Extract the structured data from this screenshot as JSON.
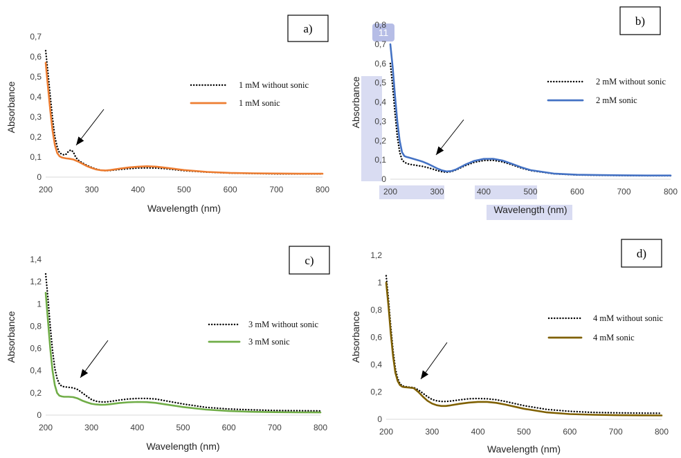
{
  "chart_data": [
    {
      "type": "line",
      "panel_label": "a)",
      "xlabel": "Wavelength (nm)",
      "ylabel": "Absorbance",
      "xlim": [
        200,
        800
      ],
      "ylim": [
        0,
        0.7
      ],
      "xticks": [
        "200",
        "300",
        "400",
        "500",
        "600",
        "700",
        "800"
      ],
      "yticks": [
        "0",
        "0,1",
        "0,2",
        "0,3",
        "0,4",
        "0,5",
        "0,6",
        "0,7"
      ],
      "legend_position": "right",
      "series": [
        {
          "name": "1 mM without  sonic",
          "style": "dotted",
          "color": "#000000",
          "x": [
            200,
            205,
            210,
            215,
            220,
            225,
            230,
            235,
            240,
            245,
            250,
            255,
            260,
            265,
            270,
            280,
            290,
            300,
            310,
            320,
            330,
            340,
            360,
            380,
            400,
            420,
            440,
            460,
            480,
            500,
            550,
            600,
            650,
            700,
            750,
            800
          ],
          "y": [
            0.63,
            0.52,
            0.4,
            0.29,
            0.2,
            0.15,
            0.12,
            0.115,
            0.11,
            0.115,
            0.13,
            0.135,
            0.125,
            0.1,
            0.085,
            0.07,
            0.058,
            0.048,
            0.04,
            0.034,
            0.032,
            0.033,
            0.038,
            0.042,
            0.045,
            0.046,
            0.045,
            0.042,
            0.037,
            0.032,
            0.025,
            0.02,
            0.018,
            0.016,
            0.016,
            0.016
          ]
        },
        {
          "name": "1 mM sonic",
          "style": "solid",
          "color": "#ED7D31",
          "x": [
            200,
            205,
            210,
            215,
            220,
            225,
            230,
            235,
            240,
            245,
            250,
            260,
            270,
            280,
            290,
            300,
            310,
            320,
            330,
            340,
            360,
            380,
            400,
            420,
            440,
            460,
            480,
            500,
            550,
            600,
            650,
            700,
            750,
            800
          ],
          "y": [
            0.57,
            0.45,
            0.33,
            0.23,
            0.16,
            0.12,
            0.104,
            0.098,
            0.095,
            0.093,
            0.092,
            0.088,
            0.078,
            0.066,
            0.054,
            0.045,
            0.038,
            0.034,
            0.033,
            0.035,
            0.042,
            0.048,
            0.052,
            0.054,
            0.052,
            0.047,
            0.041,
            0.035,
            0.026,
            0.021,
            0.019,
            0.018,
            0.017,
            0.017
          ]
        }
      ]
    },
    {
      "type": "line",
      "panel_label": "b)",
      "xlabel": "Wavelength (nm)",
      "ylabel": "Absorbance",
      "xlim": [
        200,
        800
      ],
      "ylim": [
        0,
        0.8
      ],
      "xticks": [
        "200",
        "300",
        "400",
        "500",
        "600",
        "700",
        "800"
      ],
      "yticks": [
        "0",
        "0,1",
        "0,2",
        "0,3",
        "0,4",
        "0,5",
        "0,6",
        "0,7",
        "0,8"
      ],
      "legend_position": "right",
      "highlight_badge": "11",
      "series": [
        {
          "name": "2 mM without  sonic",
          "style": "dotted",
          "color": "#000000",
          "x": [
            200,
            205,
            210,
            215,
            220,
            225,
            230,
            235,
            240,
            250,
            260,
            270,
            280,
            290,
            300,
            310,
            320,
            330,
            340,
            360,
            380,
            400,
            420,
            440,
            460,
            480,
            500,
            550,
            600,
            650,
            700,
            750,
            800
          ],
          "y": [
            0.6,
            0.48,
            0.34,
            0.22,
            0.14,
            0.1,
            0.088,
            0.082,
            0.078,
            0.074,
            0.07,
            0.066,
            0.06,
            0.053,
            0.045,
            0.039,
            0.036,
            0.039,
            0.047,
            0.07,
            0.088,
            0.097,
            0.098,
            0.09,
            0.075,
            0.058,
            0.045,
            0.028,
            0.022,
            0.02,
            0.019,
            0.018,
            0.018
          ]
        },
        {
          "name": "2 mM sonic",
          "style": "solid",
          "color": "#4472C4",
          "x": [
            200,
            205,
            210,
            215,
            220,
            225,
            230,
            235,
            240,
            250,
            260,
            270,
            280,
            290,
            300,
            310,
            320,
            330,
            340,
            360,
            380,
            400,
            420,
            440,
            460,
            480,
            500,
            550,
            600,
            650,
            700,
            750,
            800
          ],
          "y": [
            0.7,
            0.58,
            0.43,
            0.3,
            0.2,
            0.14,
            0.12,
            0.115,
            0.112,
            0.105,
            0.098,
            0.09,
            0.08,
            0.068,
            0.056,
            0.046,
            0.04,
            0.042,
            0.05,
            0.075,
            0.095,
            0.105,
            0.106,
            0.097,
            0.08,
            0.062,
            0.047,
            0.029,
            0.023,
            0.021,
            0.02,
            0.019,
            0.019
          ]
        }
      ]
    },
    {
      "type": "line",
      "panel_label": "c)",
      "xlabel": "Wavelength (nm)",
      "ylabel": "Absorbance",
      "xlim": [
        200,
        800
      ],
      "ylim": [
        0,
        1.4
      ],
      "xticks": [
        "200",
        "300",
        "400",
        "500",
        "600",
        "700",
        "800"
      ],
      "yticks": [
        "0",
        "0,2",
        "0,4",
        "0,6",
        "0,8",
        "1",
        "1,2",
        "1,4"
      ],
      "legend_position": "right",
      "series": [
        {
          "name": "3 mM without  sonic",
          "style": "dotted",
          "color": "#000000",
          "x": [
            200,
            205,
            210,
            215,
            220,
            225,
            230,
            235,
            240,
            250,
            260,
            270,
            280,
            290,
            300,
            310,
            320,
            330,
            340,
            360,
            380,
            400,
            420,
            440,
            460,
            480,
            500,
            550,
            600,
            650,
            700,
            750,
            800
          ],
          "y": [
            1.27,
            1.05,
            0.8,
            0.58,
            0.42,
            0.33,
            0.28,
            0.26,
            0.255,
            0.25,
            0.245,
            0.23,
            0.2,
            0.17,
            0.14,
            0.125,
            0.118,
            0.118,
            0.122,
            0.135,
            0.145,
            0.15,
            0.15,
            0.145,
            0.13,
            0.115,
            0.1,
            0.07,
            0.055,
            0.047,
            0.042,
            0.04,
            0.038
          ]
        },
        {
          "name": "3 mM sonic",
          "style": "solid",
          "color": "#70AD47",
          "x": [
            200,
            205,
            210,
            215,
            220,
            225,
            230,
            235,
            240,
            250,
            260,
            270,
            280,
            290,
            300,
            310,
            320,
            330,
            340,
            360,
            380,
            400,
            420,
            440,
            460,
            480,
            500,
            550,
            600,
            650,
            700,
            750,
            800
          ],
          "y": [
            1.1,
            0.85,
            0.6,
            0.4,
            0.27,
            0.2,
            0.175,
            0.168,
            0.165,
            0.165,
            0.162,
            0.15,
            0.13,
            0.115,
            0.102,
            0.096,
            0.093,
            0.094,
            0.098,
            0.108,
            0.115,
            0.118,
            0.117,
            0.11,
            0.098,
            0.085,
            0.073,
            0.05,
            0.037,
            0.03,
            0.027,
            0.025,
            0.024
          ]
        }
      ]
    },
    {
      "type": "line",
      "panel_label": "d)",
      "xlabel": "Wavelength (nm)",
      "ylabel": "Absorbance",
      "xlim": [
        200,
        800
      ],
      "ylim": [
        0,
        1.2
      ],
      "xticks": [
        "200",
        "300",
        "400",
        "500",
        "600",
        "700",
        "800"
      ],
      "yticks": [
        "0",
        "0,2",
        "0,4",
        "0,6",
        "0,8",
        "1",
        "1,2"
      ],
      "legend_position": "right",
      "series": [
        {
          "name": "4 mM without  sonic",
          "style": "dotted",
          "color": "#000000",
          "x": [
            200,
            205,
            210,
            215,
            220,
            225,
            230,
            235,
            240,
            250,
            260,
            270,
            280,
            290,
            300,
            310,
            320,
            330,
            340,
            360,
            380,
            400,
            420,
            440,
            460,
            480,
            500,
            550,
            600,
            650,
            700,
            750,
            800
          ],
          "y": [
            1.05,
            0.88,
            0.68,
            0.5,
            0.37,
            0.3,
            0.26,
            0.245,
            0.24,
            0.235,
            0.232,
            0.215,
            0.19,
            0.165,
            0.145,
            0.135,
            0.13,
            0.13,
            0.133,
            0.142,
            0.15,
            0.152,
            0.15,
            0.143,
            0.13,
            0.115,
            0.1,
            0.072,
            0.058,
            0.05,
            0.047,
            0.045,
            0.044
          ]
        },
        {
          "name": "4 mM sonic",
          "style": "solid",
          "color": "#7F6000",
          "x": [
            200,
            205,
            210,
            215,
            220,
            225,
            230,
            235,
            240,
            250,
            260,
            270,
            280,
            290,
            300,
            310,
            320,
            330,
            340,
            360,
            380,
            400,
            420,
            440,
            460,
            480,
            500,
            550,
            600,
            650,
            700,
            750,
            800
          ],
          "y": [
            1.0,
            0.83,
            0.63,
            0.46,
            0.34,
            0.28,
            0.25,
            0.238,
            0.235,
            0.232,
            0.228,
            0.2,
            0.165,
            0.135,
            0.115,
            0.103,
            0.097,
            0.097,
            0.102,
            0.113,
            0.122,
            0.127,
            0.127,
            0.12,
            0.107,
            0.092,
            0.077,
            0.05,
            0.038,
            0.033,
            0.03,
            0.029,
            0.028
          ]
        }
      ]
    }
  ]
}
